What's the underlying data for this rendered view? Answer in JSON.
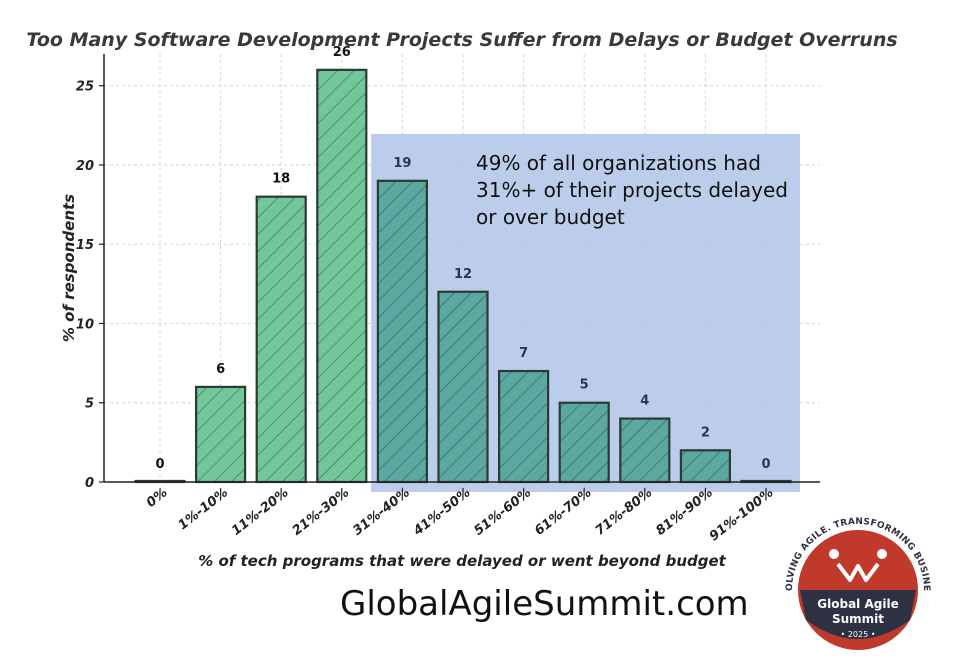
{
  "chart_data": {
    "type": "bar",
    "title": "Too Many Software Development Projects Suffer from Delays or Budget Overruns",
    "xlabel": "% of tech programs that were delayed or went beyond budget",
    "ylabel": "% of respondents",
    "categories": [
      "0%",
      "1%-10%",
      "11%-20%",
      "21%-30%",
      "31%-40%",
      "41%-50%",
      "51%-60%",
      "61%-70%",
      "71%-80%",
      "81%-90%",
      "91%-100%"
    ],
    "values": [
      0,
      6,
      18,
      26,
      19,
      12,
      7,
      5,
      4,
      2,
      0
    ],
    "ylim": [
      0,
      27
    ],
    "yticks": [
      0,
      5,
      10,
      15,
      20,
      25
    ],
    "grid": true,
    "highlight_from_index": 4,
    "colors": {
      "bar_fill": "#72c79a",
      "bar_fill_highlighted": "#5aa8a0",
      "bar_edge": "#2b3a35",
      "highlight_region": "#b4c8e8",
      "data_label": "#111111",
      "data_label_highlighted": "#2a3550"
    },
    "annotation": {
      "lines": [
        "49% of all organizations had",
        "31%+ of their projects delayed",
        "or over budget"
      ]
    }
  },
  "footer": {
    "url": "GlobalAgileSummit.com"
  },
  "badge": {
    "arc_text": "EVOLVING AGILE. TRANSFORMING BUSINESS",
    "line1": "Global Agile",
    "line2": "Summit",
    "year": "• 2025 •",
    "colors": {
      "ring": "#c0392b",
      "dark": "#2d3142",
      "red": "#c0392b"
    }
  }
}
